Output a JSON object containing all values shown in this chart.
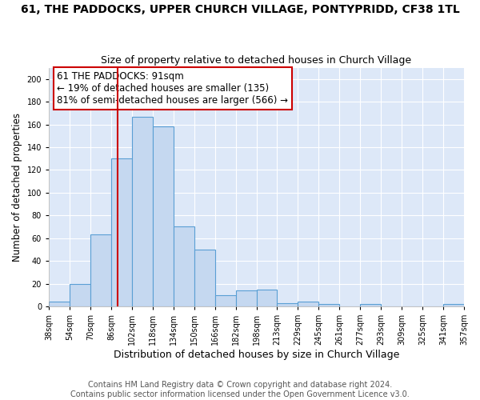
{
  "title": "61, THE PADDOCKS, UPPER CHURCH VILLAGE, PONTYPRIDD, CF38 1TL",
  "subtitle": "Size of property relative to detached houses in Church Village",
  "xlabel": "Distribution of detached houses by size in Church Village",
  "ylabel": "Number of detached properties",
  "bin_edges": [
    38,
    54,
    70,
    86,
    102,
    118,
    134,
    150,
    166,
    182,
    198,
    213,
    229,
    245,
    261,
    277,
    293,
    309,
    325,
    341,
    357
  ],
  "bar_heights": [
    4,
    20,
    63,
    130,
    167,
    158,
    70,
    50,
    10,
    14,
    15,
    3,
    4,
    2,
    0,
    2,
    0,
    0,
    0,
    2
  ],
  "bar_color": "#c5d8f0",
  "bar_edge_color": "#5a9fd4",
  "bar_edge_width": 0.8,
  "property_size": 91,
  "red_line_color": "#cc0000",
  "annotation_text": "61 THE PADDOCKS: 91sqm\n← 19% of detached houses are smaller (135)\n81% of semi-detached houses are larger (566) →",
  "annotation_box_color": "#ffffff",
  "annotation_box_edge_color": "#cc0000",
  "ylim": [
    0,
    210
  ],
  "yticks": [
    0,
    20,
    40,
    60,
    80,
    100,
    120,
    140,
    160,
    180,
    200
  ],
  "footer_text": "Contains HM Land Registry data © Crown copyright and database right 2024.\nContains public sector information licensed under the Open Government Licence v3.0.",
  "background_color": "#dde8f8",
  "fig_background_color": "#ffffff",
  "grid_color": "#ffffff",
  "title_fontsize": 10,
  "subtitle_fontsize": 9,
  "ylabel_fontsize": 8.5,
  "xlabel_fontsize": 9,
  "tick_fontsize": 7,
  "annotation_fontsize": 8.5,
  "footer_fontsize": 7
}
